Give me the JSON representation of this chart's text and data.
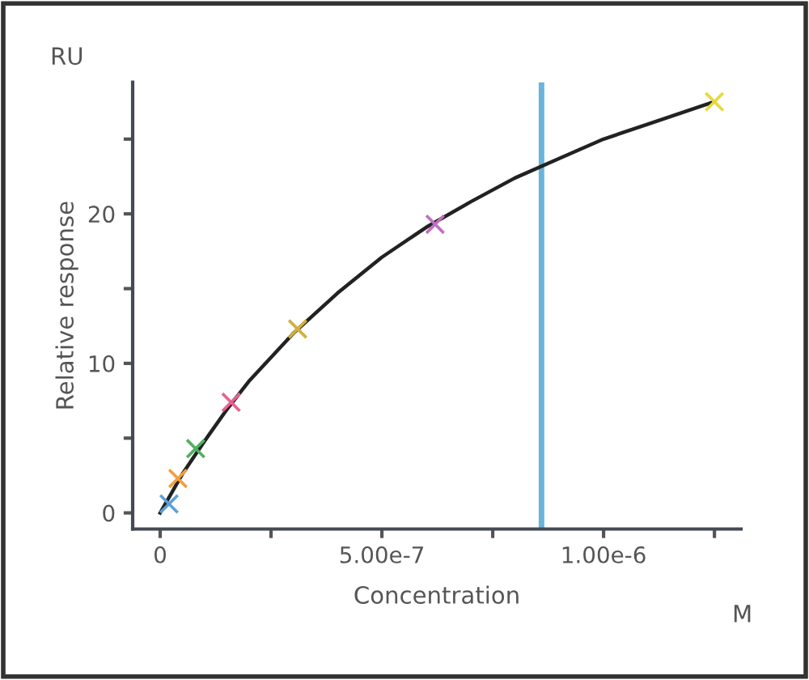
{
  "chart_data": {
    "type": "scatter",
    "xlabel": "Concentration",
    "ylabel": "Relative response",
    "annotations": [
      "RU",
      "M"
    ],
    "series": [
      {
        "type": "line",
        "color": "#222222",
        "marker": "none",
        "line_style": "solid",
        "x": [
          0,
          2.5e-08,
          5e-08,
          1e-07,
          1.5e-07,
          2e-07,
          3e-07,
          4e-07,
          5e-07,
          6e-07,
          7e-07,
          8e-07,
          9e-07,
          1e-06,
          1.1e-06,
          1.25e-06
        ],
        "values": [
          0,
          1.3,
          2.6,
          4.8,
          6.9,
          8.8,
          12.0,
          14.7,
          17.1,
          19.1,
          20.8,
          22.4,
          23.7,
          25.0,
          26.0,
          27.5
        ]
      },
      {
        "marker": "cross",
        "colors": [
          "#5aa0d8",
          "#f0a040",
          "#50b060",
          "#e86090",
          "#d0b040",
          "#c070c0",
          "#e8d840"
        ],
        "x": [
          2e-08,
          4e-08,
          8e-08,
          1.6e-07,
          3.1e-07,
          6.2e-07,
          1.25e-06
        ],
        "values": [
          0.6,
          2.3,
          4.3,
          7.4,
          12.3,
          19.3,
          27.5
        ]
      }
    ],
    "ref_lines": [
      {
        "axis": "x",
        "value": 8.6e-07,
        "color": "#6ab4dc",
        "line_style": "solid"
      }
    ],
    "xlim": [
      -6.2e-08,
      1.31e-06
    ],
    "ylim": [
      -1.08,
      28.8
    ],
    "xticks": [
      0,
      {
        "value": 2.5e-07,
        "label": null
      },
      {
        "value": 5e-07,
        "label": "5.00e-7"
      },
      {
        "value": 7.5e-07,
        "label": null
      },
      {
        "value": 1e-06,
        "label": "1.00e-6"
      },
      {
        "value": 1.25e-06,
        "label": null
      }
    ],
    "yticks": [
      0,
      {
        "value": 5,
        "label": null
      },
      10,
      {
        "value": 15,
        "label": null
      },
      20,
      {
        "value": 25,
        "label": null
      }
    ],
    "grid": false,
    "legend": false
  }
}
